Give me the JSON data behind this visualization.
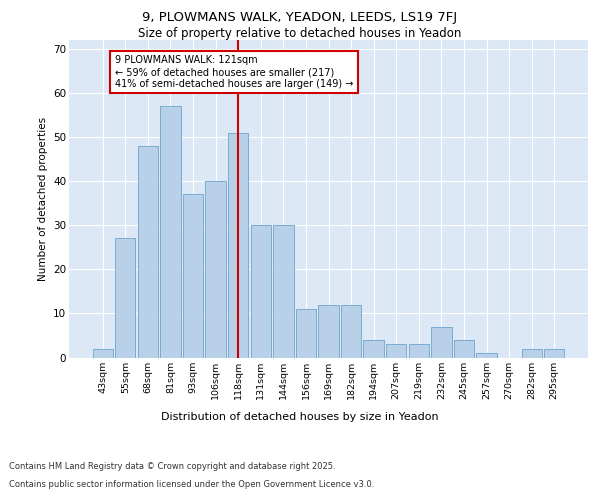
{
  "title1": "9, PLOWMANS WALK, YEADON, LEEDS, LS19 7FJ",
  "title2": "Size of property relative to detached houses in Yeadon",
  "xlabel": "Distribution of detached houses by size in Yeadon",
  "ylabel": "Number of detached properties",
  "categories": [
    "43sqm",
    "55sqm",
    "68sqm",
    "81sqm",
    "93sqm",
    "106sqm",
    "118sqm",
    "131sqm",
    "144sqm",
    "156sqm",
    "169sqm",
    "182sqm",
    "194sqm",
    "207sqm",
    "219sqm",
    "232sqm",
    "245sqm",
    "257sqm",
    "270sqm",
    "282sqm",
    "295sqm"
  ],
  "values": [
    2,
    27,
    48,
    57,
    37,
    40,
    51,
    30,
    30,
    11,
    12,
    12,
    4,
    3,
    3,
    7,
    4,
    1,
    0,
    2,
    2
  ],
  "bar_color": "#b8d0e8",
  "bar_edge_color": "#7aabcf",
  "highlight_index": 6,
  "highlight_line_color": "#cc0000",
  "annotation_text": "9 PLOWMANS WALK: 121sqm\n← 59% of detached houses are smaller (217)\n41% of semi-detached houses are larger (149) →",
  "annotation_box_edge_color": "#cc0000",
  "ylim": [
    0,
    72
  ],
  "yticks": [
    0,
    10,
    20,
    30,
    40,
    50,
    60,
    70
  ],
  "background_color": "#dce8f5",
  "footer1": "Contains HM Land Registry data © Crown copyright and database right 2025.",
  "footer2": "Contains public sector information licensed under the Open Government Licence v3.0."
}
